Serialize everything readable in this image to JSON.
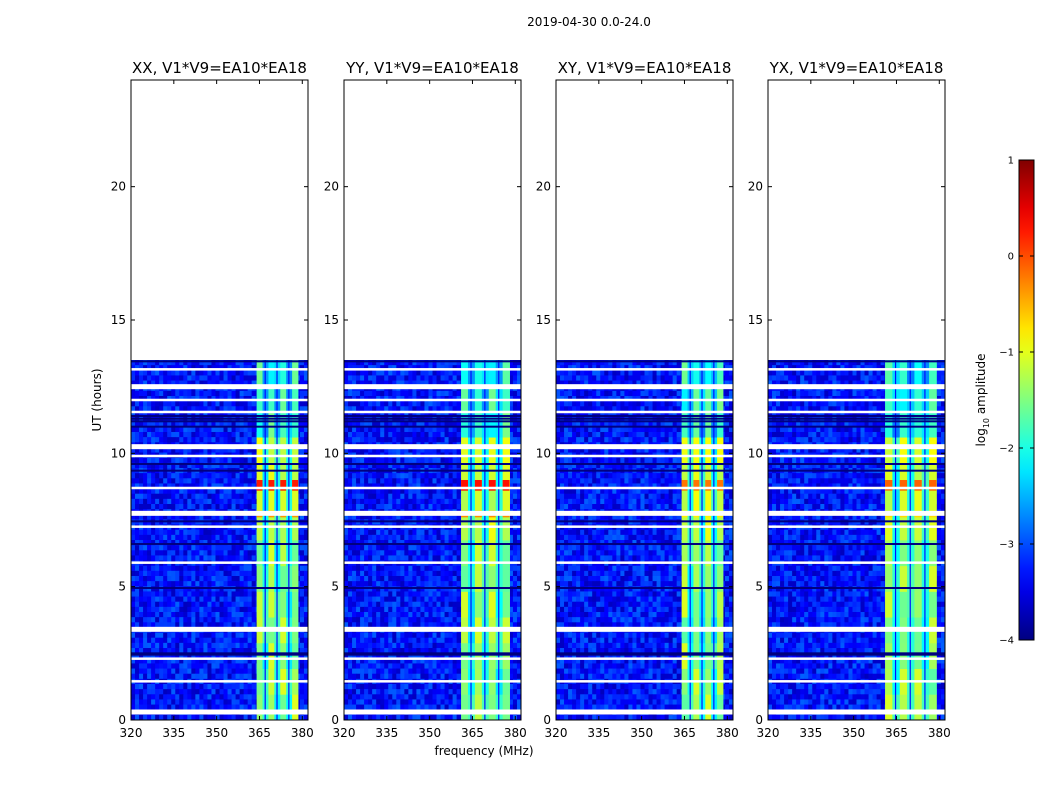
{
  "figure": {
    "suptitle": "2019-04-30 0.0-24.0",
    "xlabel": "frequency (MHz)",
    "ylabel": "UT (hours)"
  },
  "chart_data": {
    "type": "heatmap",
    "title": "2019-04-30 0.0-24.0",
    "xlabel": "frequency (MHz)",
    "ylabel": "UT (hours)",
    "xlim": [
      320,
      382
    ],
    "ylim": [
      0,
      24
    ],
    "x_ticks": [
      320,
      335,
      350,
      365,
      380
    ],
    "x_tick_labels": [
      "320",
      "335",
      "350",
      "365",
      "380"
    ],
    "y_ticks": [
      0,
      5,
      10,
      15,
      20
    ],
    "y_tick_labels": [
      "0",
      "5",
      "10",
      "15",
      "20"
    ],
    "data_time_range": [
      0.0,
      13.5
    ],
    "bright_band_mhz": [
      364,
      380
    ],
    "panels": [
      {
        "title": "XX, V1*V9=EA10*EA18",
        "band": [
          364,
          378.5
        ],
        "peak": 0.25
      },
      {
        "title": "YY, V1*V9=EA10*EA18",
        "band": [
          361,
          378
        ],
        "peak": 0.3
      },
      {
        "title": "XY, V1*V9=EA10*EA18",
        "band": [
          364,
          378.5
        ],
        "peak": -0.2
      },
      {
        "title": "YX, V1*V9=EA10*EA18",
        "band": [
          361,
          379
        ],
        "peak": -0.1
      }
    ],
    "gap_rows_hours": [
      0.3,
      1.45,
      2.3,
      3.4,
      5.9,
      7.25,
      7.75,
      8.7,
      9.9,
      10.25,
      11.55,
      12.0,
      12.5,
      13.15
    ],
    "dark_rows_hours": [
      2.5,
      2.45,
      4.95,
      6.6,
      7.45,
      9.6,
      9.35,
      11.0,
      11.3,
      11.4,
      11.2,
      13.45
    ],
    "colorbar": {
      "label_prefix": "log",
      "label_subscript": "10",
      "label_suffix": " amplitude",
      "range": [
        -4,
        1
      ],
      "ticks": [
        1,
        0,
        -1,
        -2,
        -3,
        -4
      ],
      "tick_labels": [
        "1",
        "0",
        "−1",
        "−2",
        "−3",
        "−4"
      ],
      "colormap": "jet"
    }
  }
}
